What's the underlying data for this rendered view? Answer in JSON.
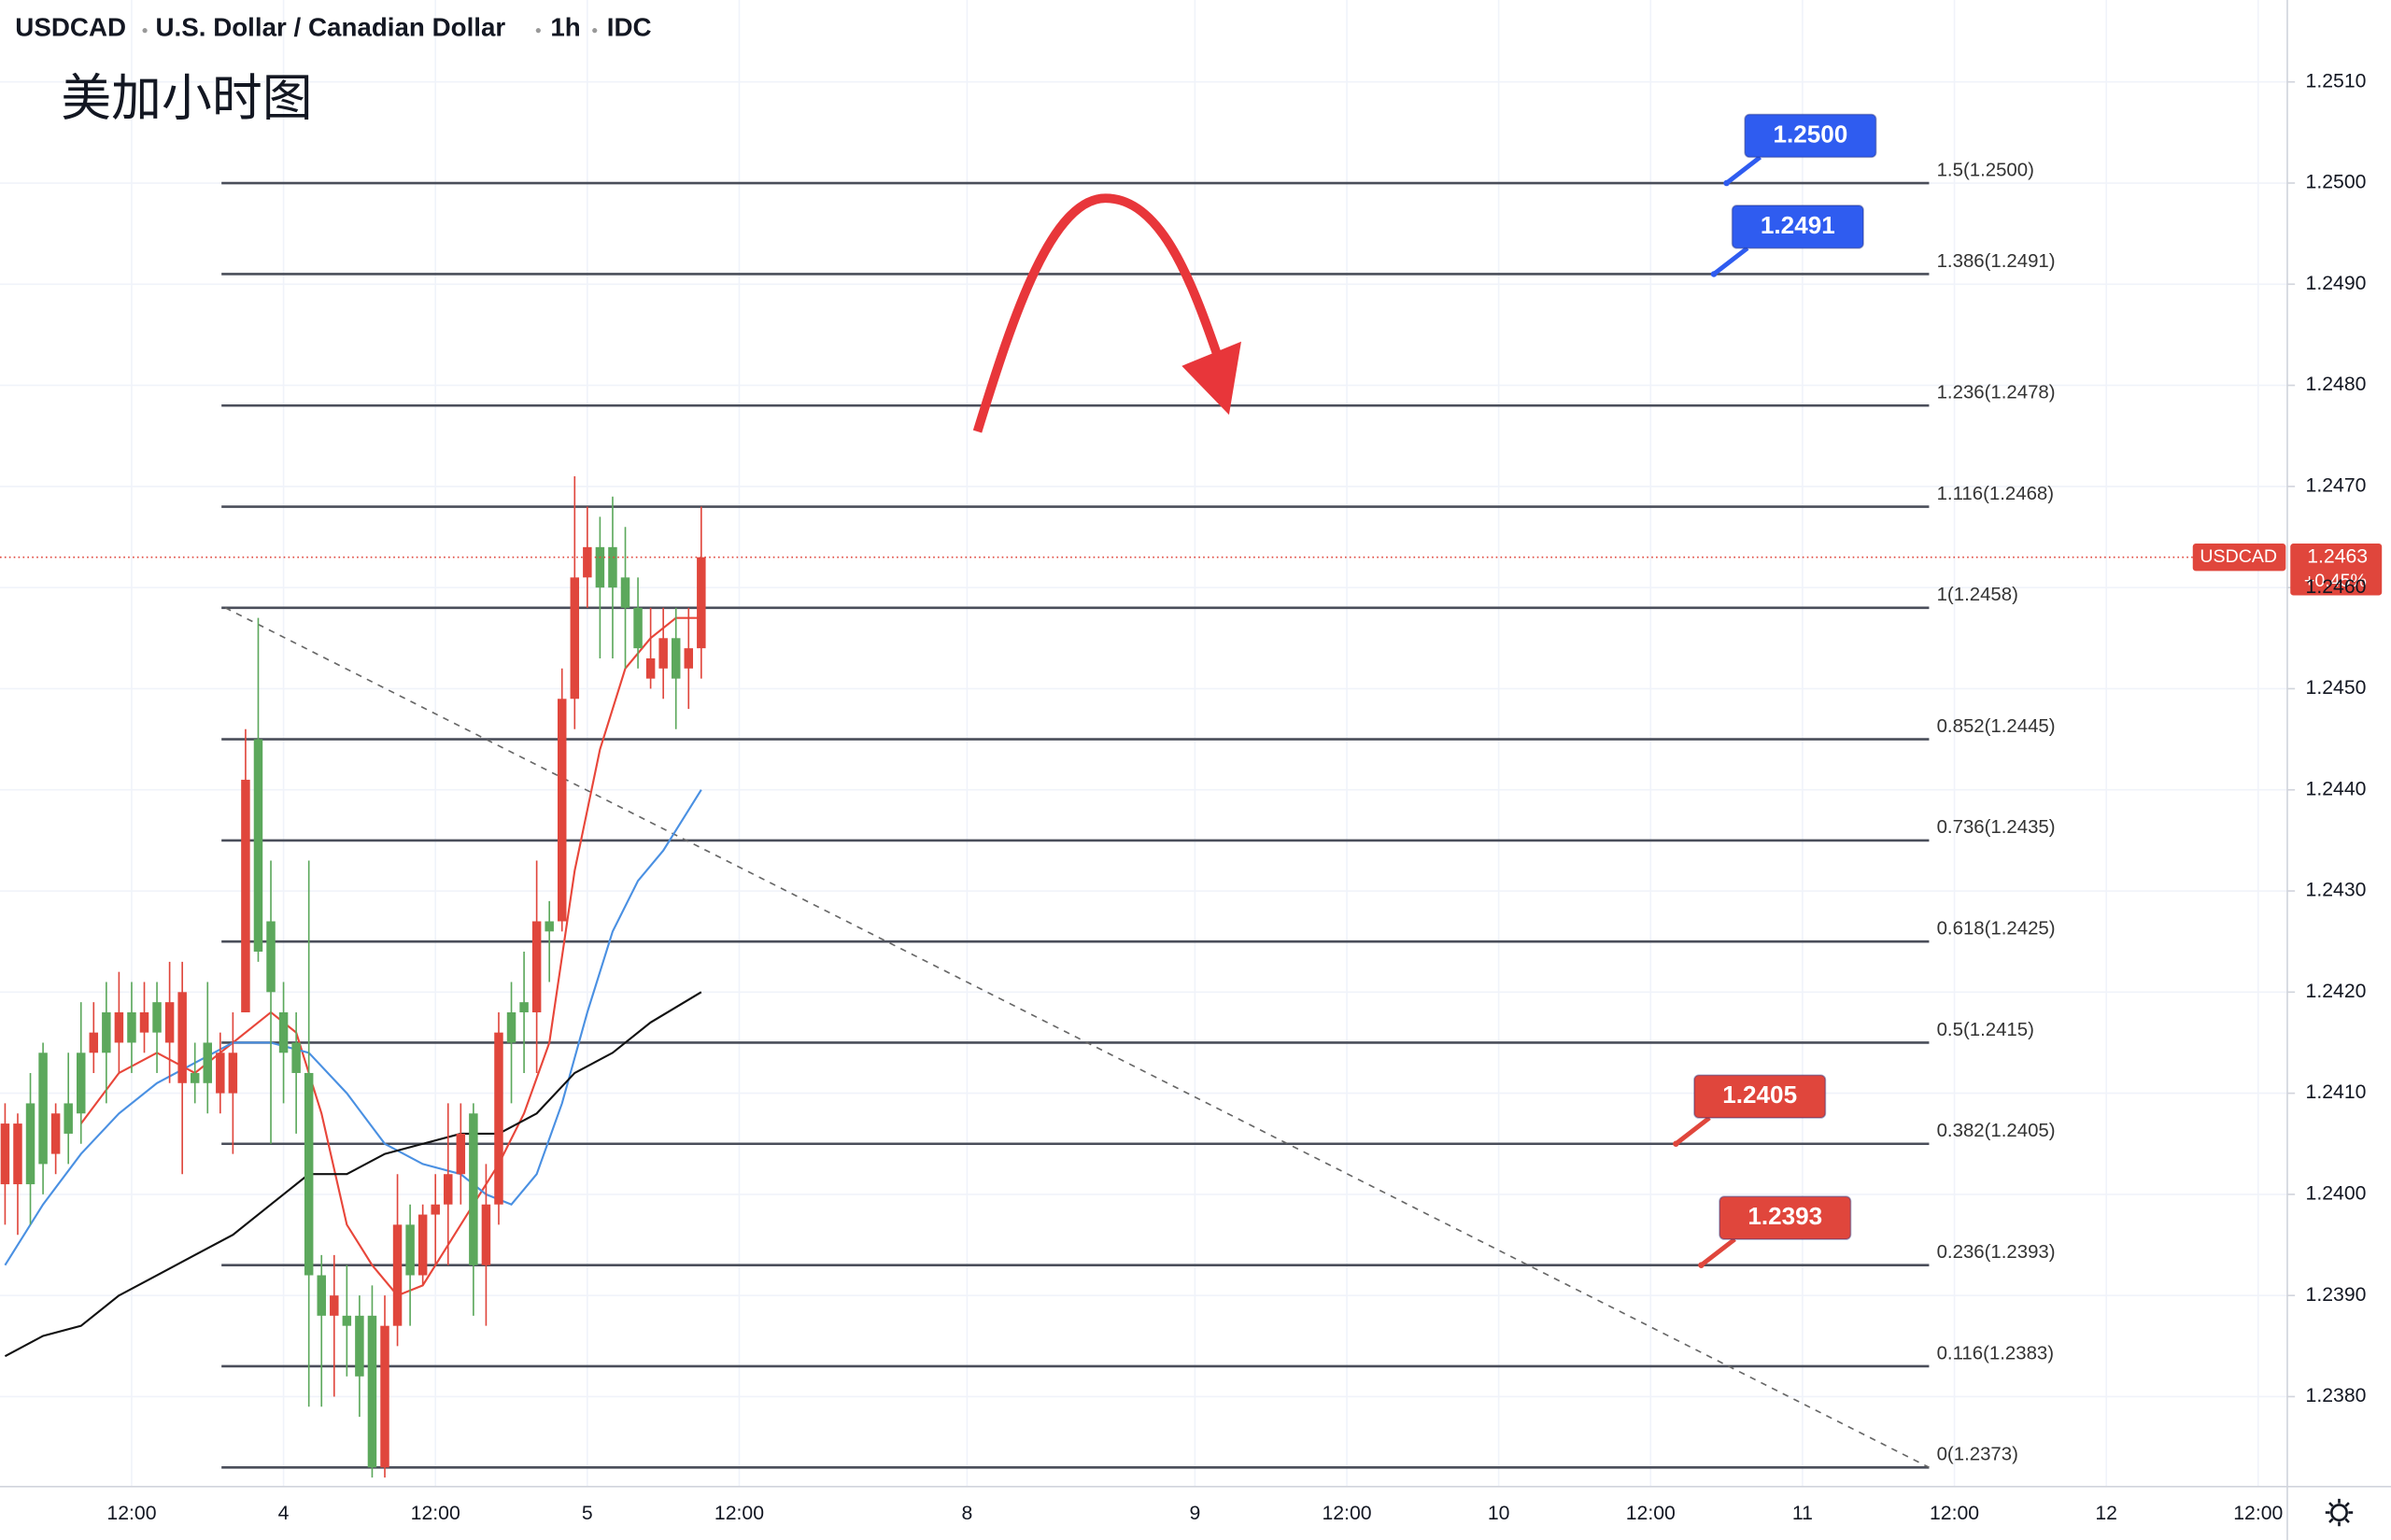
{
  "chart_data": {
    "type": "candlestick",
    "symbol": "USDCAD",
    "description": "U.S. Dollar / Canadian Dollar",
    "interval": "1h",
    "source": "IDC",
    "title": "美加小时图",
    "up_color": "#e0463c",
    "down_color": "#5ca85c",
    "grid": true,
    "xlim": [
      -22.4,
      158.3
    ],
    "ylim": [
      1.23711,
      1.25181
    ],
    "xticks": [
      {
        "value": -12,
        "label": "12:00"
      },
      {
        "value": 0,
        "label": "4"
      },
      {
        "value": 12,
        "label": "12:00"
      },
      {
        "value": 24,
        "label": "5"
      },
      {
        "value": 36,
        "label": "12:00"
      },
      {
        "value": 54,
        "label": "8"
      },
      {
        "value": 72,
        "label": "9"
      },
      {
        "value": 84,
        "label": "12:00"
      },
      {
        "value": 96,
        "label": "10"
      },
      {
        "value": 108,
        "label": "12:00"
      },
      {
        "value": 120,
        "label": "11"
      },
      {
        "value": 132,
        "label": "12:00"
      },
      {
        "value": 144,
        "label": "12"
      },
      {
        "value": 156,
        "label": "12:00"
      }
    ],
    "yticks": [
      {
        "value": 1.238,
        "label": "1.2380"
      },
      {
        "value": 1.239,
        "label": "1.2390"
      },
      {
        "value": 1.24,
        "label": "1.2400"
      },
      {
        "value": 1.241,
        "label": "1.2410"
      },
      {
        "value": 1.242,
        "label": "1.2420"
      },
      {
        "value": 1.243,
        "label": "1.2430"
      },
      {
        "value": 1.244,
        "label": "1.2440"
      },
      {
        "value": 1.245,
        "label": "1.2450"
      },
      {
        "value": 1.246,
        "label": "1.2460"
      },
      {
        "value": 1.247,
        "label": "1.2470"
      },
      {
        "value": 1.248,
        "label": "1.2480"
      },
      {
        "value": 1.249,
        "label": "1.2490"
      },
      {
        "value": 1.25,
        "label": "1.2500"
      },
      {
        "value": 1.251,
        "label": "1.2510"
      }
    ],
    "x": [
      -22,
      -21,
      -20,
      -19,
      -18,
      -17,
      -16,
      -15,
      -14,
      -13,
      -12,
      -11,
      -10,
      -9,
      -8,
      -7,
      -6,
      -5,
      -4,
      -3,
      -2,
      -1,
      0,
      1,
      2,
      3,
      4,
      5,
      6,
      7,
      8,
      9,
      10,
      11,
      12,
      13,
      14,
      15,
      16,
      17,
      18,
      19,
      20,
      21,
      22,
      23,
      24,
      25,
      26,
      27,
      28,
      29,
      30,
      31,
      32,
      33
    ],
    "open": [
      1.2401,
      1.2401,
      1.2409,
      1.2414,
      1.2404,
      1.2409,
      1.2414,
      1.2414,
      1.2418,
      1.2415,
      1.2418,
      1.2416,
      1.2419,
      1.2415,
      1.2411,
      1.2412,
      1.2415,
      1.241,
      1.241,
      1.2418,
      1.2445,
      1.2427,
      1.2418,
      1.2415,
      1.2412,
      1.2392,
      1.2388,
      1.2388,
      1.2388,
      1.2388,
      1.2373,
      1.2387,
      1.2397,
      1.2392,
      1.2398,
      1.2399,
      1.2402,
      1.2408,
      1.2393,
      1.2399,
      1.2418,
      1.2419,
      1.2418,
      1.2427,
      1.2427,
      1.2449,
      1.2461,
      1.2464,
      1.2464,
      1.2461,
      1.2458,
      1.2451,
      1.2452,
      1.2455,
      1.2452,
      1.2454
    ],
    "high": [
      1.2409,
      1.2408,
      1.2412,
      1.2415,
      1.2409,
      1.2414,
      1.2419,
      1.2419,
      1.2421,
      1.2422,
      1.2421,
      1.2421,
      1.2421,
      1.2423,
      1.2423,
      1.2415,
      1.2421,
      1.2416,
      1.2418,
      1.2446,
      1.2457,
      1.2433,
      1.2421,
      1.2418,
      1.2433,
      1.2394,
      1.2394,
      1.2393,
      1.239,
      1.2391,
      1.239,
      1.2402,
      1.2399,
      1.2399,
      1.2402,
      1.2409,
      1.2409,
      1.2409,
      1.2403,
      1.2418,
      1.2421,
      1.2424,
      1.2433,
      1.2429,
      1.2452,
      1.2471,
      1.2468,
      1.2467,
      1.2469,
      1.2466,
      1.2461,
      1.2458,
      1.2458,
      1.2458,
      1.2458,
      1.2468
    ],
    "low": [
      1.2397,
      1.2396,
      1.2397,
      1.24,
      1.2402,
      1.2403,
      1.2405,
      1.2412,
      1.2409,
      1.2412,
      1.2412,
      1.2414,
      1.2412,
      1.2411,
      1.2402,
      1.2409,
      1.2408,
      1.2408,
      1.2404,
      1.2418,
      1.2423,
      1.2405,
      1.2409,
      1.2406,
      1.2379,
      1.2379,
      1.238,
      1.2382,
      1.2378,
      1.2372,
      1.2372,
      1.2385,
      1.2387,
      1.2391,
      1.2393,
      1.2393,
      1.2399,
      1.2388,
      1.2387,
      1.2397,
      1.2409,
      1.2412,
      1.2412,
      1.2421,
      1.2426,
      1.2446,
      1.2458,
      1.2453,
      1.2453,
      1.2452,
      1.2452,
      1.245,
      1.2449,
      1.2446,
      1.2448,
      1.2451
    ],
    "close": [
      1.2407,
      1.2407,
      1.2401,
      1.2403,
      1.2408,
      1.2406,
      1.2408,
      1.2416,
      1.2414,
      1.2418,
      1.2415,
      1.2418,
      1.2416,
      1.2419,
      1.242,
      1.2411,
      1.2411,
      1.2414,
      1.2414,
      1.2441,
      1.2424,
      1.242,
      1.2414,
      1.2412,
      1.2392,
      1.2388,
      1.239,
      1.2387,
      1.2382,
      1.2373,
      1.2387,
      1.2397,
      1.2392,
      1.2398,
      1.2399,
      1.2402,
      1.2406,
      1.2393,
      1.2399,
      1.2416,
      1.2415,
      1.2418,
      1.2427,
      1.2426,
      1.2449,
      1.2461,
      1.2464,
      1.246,
      1.246,
      1.2458,
      1.2454,
      1.2453,
      1.2455,
      1.2451,
      1.2454,
      1.2463
    ],
    "moving_averages": [
      {
        "color": "#e8463a",
        "x": [
          -16,
          -13,
          -10,
          -7,
          -4,
          -1,
          1,
          3,
          5,
          7,
          9,
          11,
          13,
          15,
          17,
          19,
          21,
          23,
          25,
          27,
          29,
          31,
          33
        ],
        "values": [
          1.2407,
          1.2412,
          1.2414,
          1.2412,
          1.2415,
          1.2418,
          1.2416,
          1.2408,
          1.2397,
          1.2393,
          1.239,
          1.2391,
          1.2395,
          1.2399,
          1.2403,
          1.2408,
          1.2415,
          1.2432,
          1.2444,
          1.2452,
          1.2455,
          1.2457,
          1.2457
        ]
      },
      {
        "color": "#4a90e2",
        "x": [
          -22,
          -19,
          -16,
          -13,
          -10,
          -7,
          -4,
          -1,
          2,
          5,
          8,
          11,
          14,
          16,
          18,
          20,
          22,
          24,
          26,
          28,
          30,
          33
        ],
        "values": [
          1.2393,
          1.2399,
          1.2404,
          1.2408,
          1.2411,
          1.2413,
          1.2415,
          1.2415,
          1.2414,
          1.241,
          1.2405,
          1.2403,
          1.2402,
          1.24,
          1.2399,
          1.2402,
          1.2409,
          1.2418,
          1.2426,
          1.2431,
          1.2434,
          1.244
        ]
      },
      {
        "color": "#111111",
        "x": [
          -22,
          -19,
          -16,
          -13,
          -10,
          -7,
          -4,
          -1,
          2,
          5,
          8,
          11,
          14,
          17,
          20,
          23,
          26,
          29,
          33
        ],
        "values": [
          1.2384,
          1.2386,
          1.2387,
          1.239,
          1.2392,
          1.2394,
          1.2396,
          1.2399,
          1.2402,
          1.2402,
          1.2404,
          1.2405,
          1.2406,
          1.2406,
          1.2408,
          1.2412,
          1.2414,
          1.2417,
          1.242
        ]
      }
    ],
    "fib_x": [
      -4.9,
      130
    ],
    "fib_levels": [
      {
        "value": 1.25,
        "label": "1.5(1.2500)"
      },
      {
        "value": 1.2491,
        "label": "1.386(1.2491)"
      },
      {
        "value": 1.2478,
        "label": "1.236(1.2478)"
      },
      {
        "value": 1.2468,
        "label": "1.116(1.2468)"
      },
      {
        "value": 1.2458,
        "label": "1(1.2458)"
      },
      {
        "value": 1.2445,
        "label": "0.852(1.2445)"
      },
      {
        "value": 1.2435,
        "label": "0.736(1.2435)"
      },
      {
        "value": 1.2425,
        "label": "0.618(1.2425)"
      },
      {
        "value": 1.2415,
        "label": "0.5(1.2415)"
      },
      {
        "value": 1.2405,
        "label": "0.382(1.2405)"
      },
      {
        "value": 1.2393,
        "label": "0.236(1.2393)"
      },
      {
        "value": 1.2383,
        "label": "0.116(1.2383)"
      },
      {
        "value": 1.2373,
        "label": "0(1.2373)"
      }
    ],
    "trendline": {
      "x": [
        -4.6,
        130
      ],
      "values": [
        1.2458,
        1.2373
      ]
    },
    "callouts": [
      {
        "value": 1.25,
        "label": "1.2500",
        "x": 114,
        "color": "#2f5cf0"
      },
      {
        "value": 1.2491,
        "label": "1.2491",
        "x": 113,
        "color": "#2f5cf0"
      },
      {
        "value": 1.2405,
        "label": "1.2405",
        "x": 110,
        "color": "#e0463c"
      },
      {
        "value": 1.2393,
        "label": "1.2393",
        "x": 112,
        "color": "#e0463c"
      }
    ],
    "last_price": {
      "symbol": "USDCAD",
      "value": 1.2463,
      "change": "+0.45%",
      "color": "#e0463c"
    }
  }
}
